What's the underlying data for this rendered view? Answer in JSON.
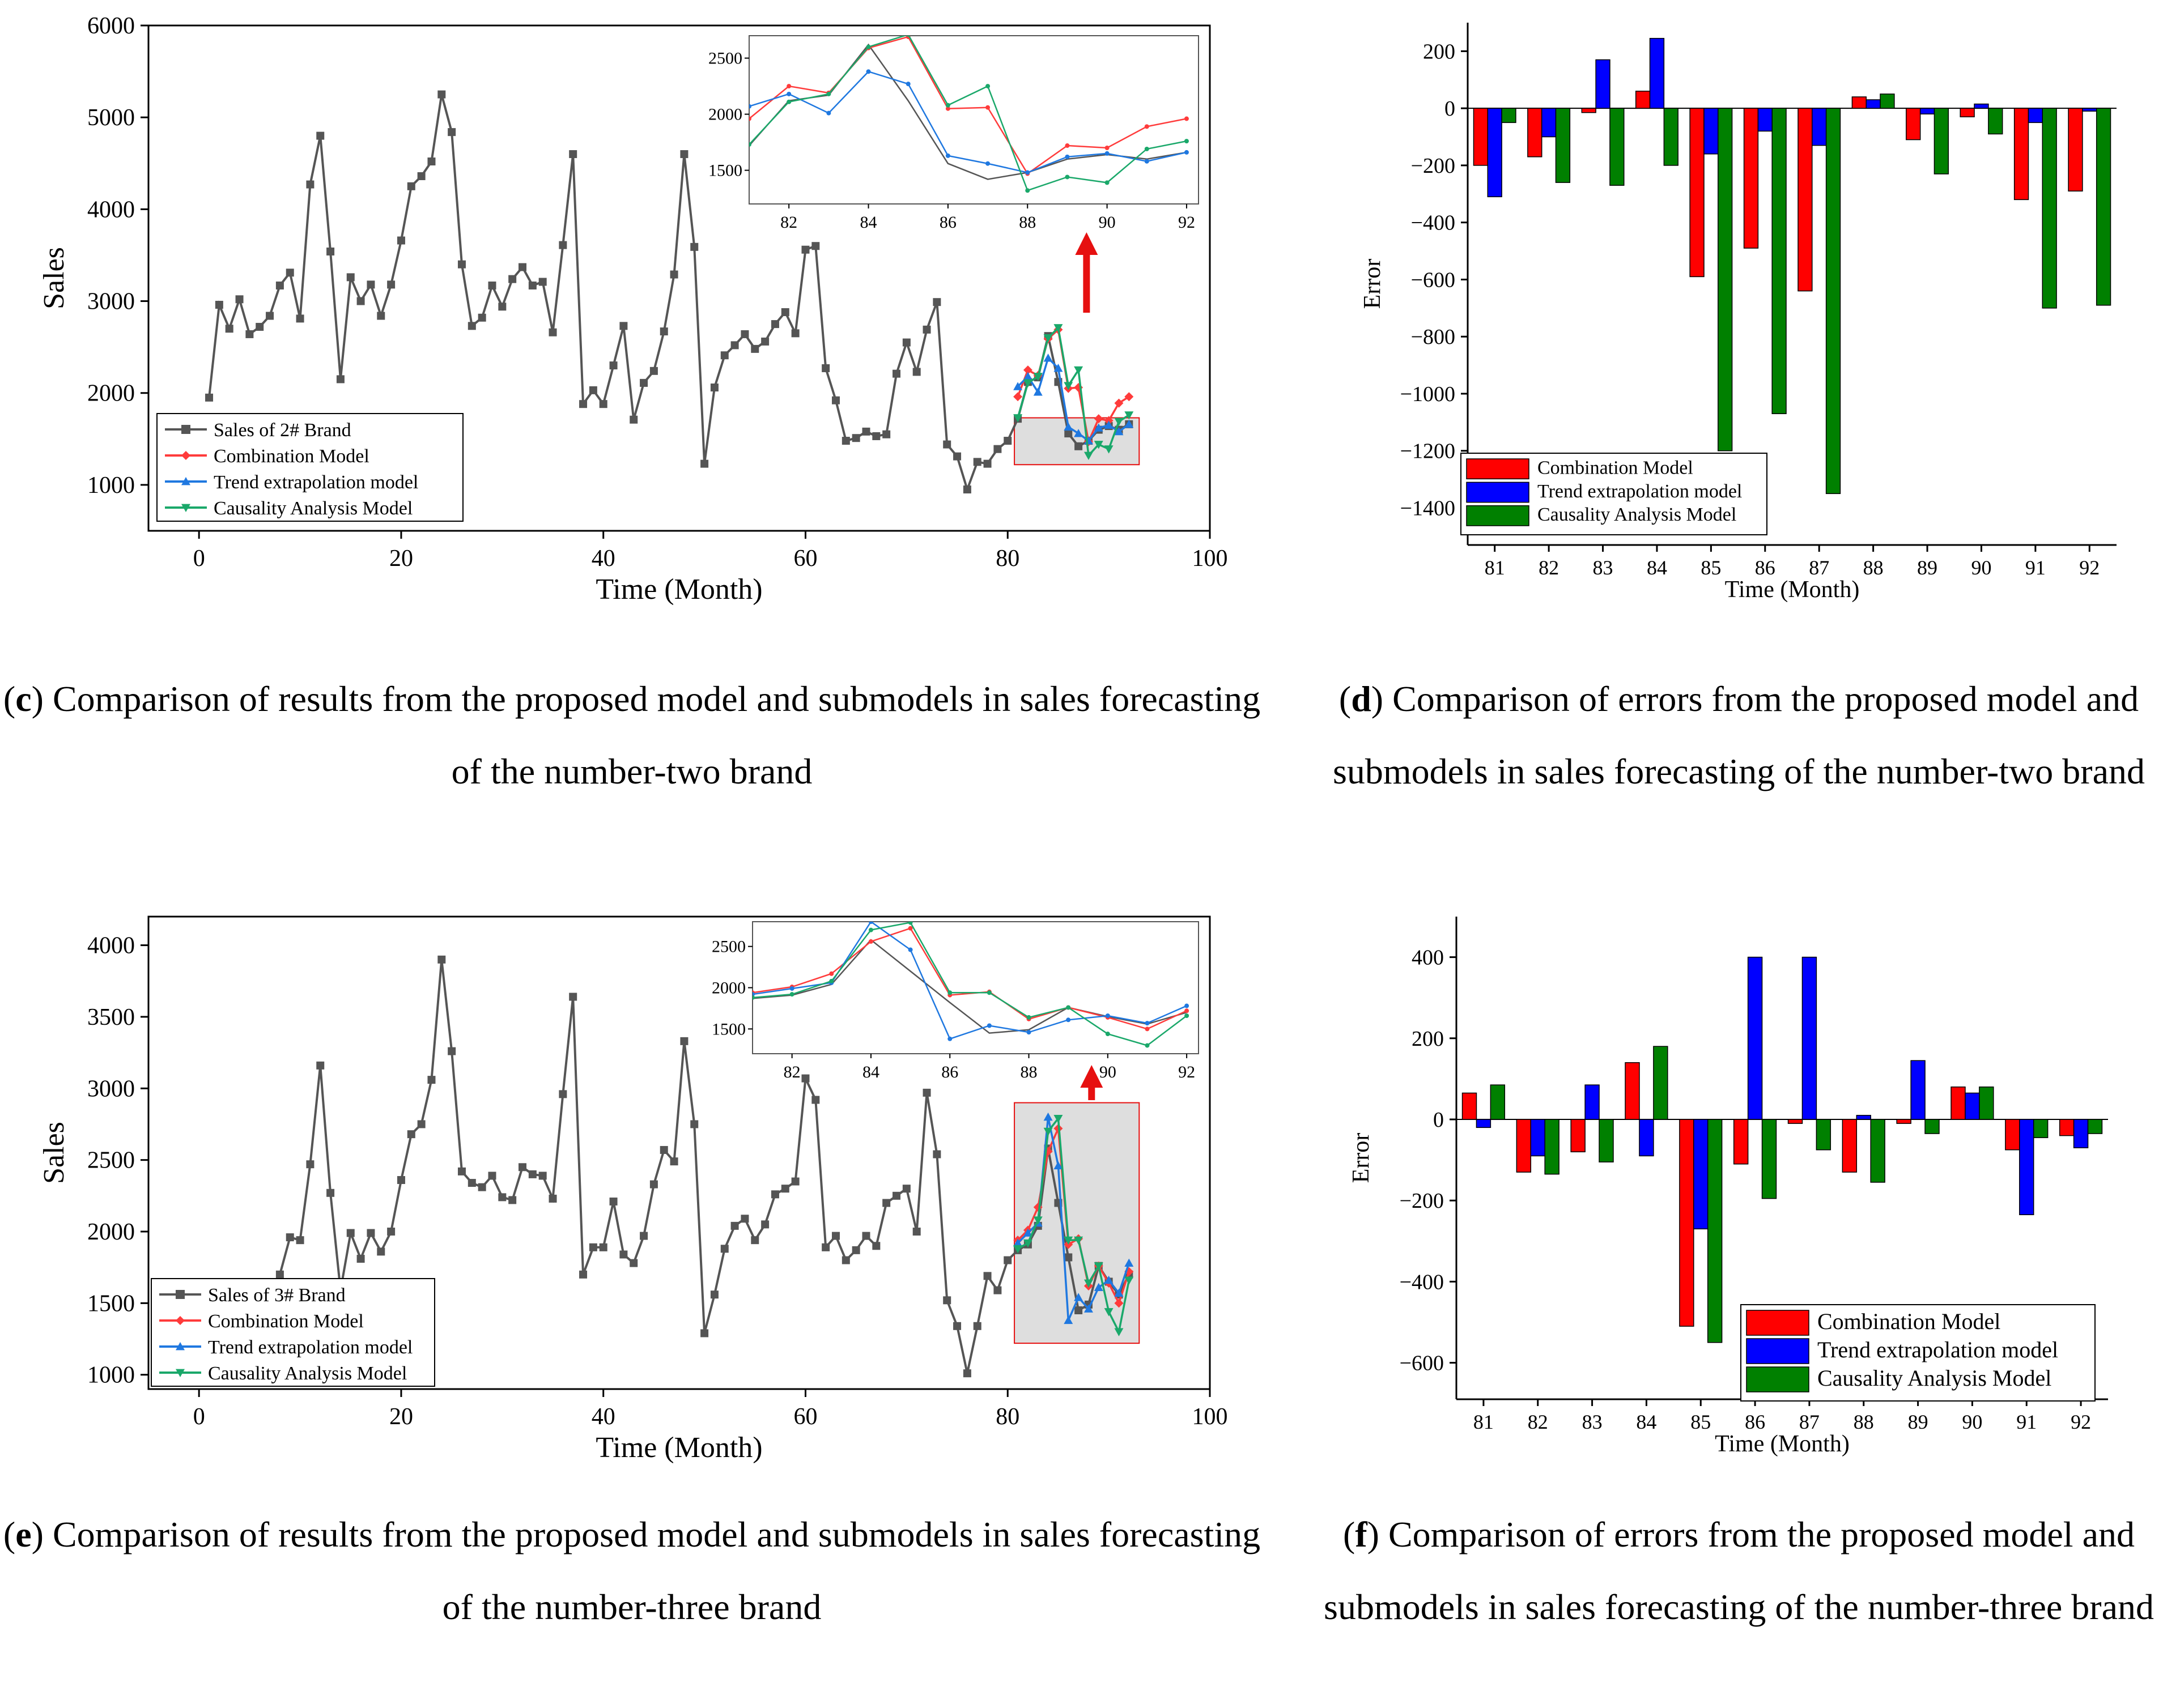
{
  "captions": {
    "c": {
      "letter": "c",
      "text": ") Comparison of results from the proposed model and submodels in sales forecasting of the number-two brand"
    },
    "d": {
      "letter": "d",
      "text": ") Comparison of errors from the proposed model and submodels in sales forecasting of the number-two brand"
    },
    "e": {
      "letter": "e",
      "text": ") Comparison of results from the proposed model and submodels in sales forecasting of the number-three brand"
    },
    "f": {
      "letter": "f",
      "text": ") Comparison of errors from the proposed model and submodels in sales forecasting of the number-three brand"
    }
  },
  "colors": {
    "sales": "#555555",
    "combination": "#ff3b3b",
    "trend": "#1f78e0",
    "causality": "#1aa86a",
    "bar_red": "#ff0000",
    "bar_blue": "#0000ff",
    "bar_green": "#008000",
    "arrow": "#e61010",
    "zoom_bg": "#dedede"
  },
  "chart_data": [
    {
      "id": "c",
      "type": "line",
      "xlabel": "Time (Month)",
      "ylabel": "Sales",
      "xlim": [
        -5,
        100
      ],
      "ylim": [
        500,
        6000
      ],
      "xticks": [
        0,
        20,
        40,
        60,
        80,
        100
      ],
      "yticks": [
        1000,
        2000,
        3000,
        4000,
        5000,
        6000
      ],
      "legend": [
        "Sales of 2# Brand",
        "Combination Model",
        "Trend extrapolation model",
        "Causality Analysis Model"
      ],
      "sales": {
        "x": [
          1,
          2,
          3,
          4,
          5,
          6,
          7,
          8,
          9,
          10,
          11,
          12,
          13,
          14,
          15,
          16,
          17,
          18,
          19,
          20,
          21,
          22,
          23,
          24,
          25,
          26,
          27,
          28,
          29,
          30,
          31,
          32,
          33,
          34,
          35,
          36,
          37,
          38,
          39,
          40,
          41,
          42,
          43,
          44,
          45,
          46,
          47,
          48,
          49,
          50,
          51,
          52,
          53,
          54,
          55,
          56,
          57,
          58,
          59,
          60,
          61,
          62,
          63,
          64,
          65,
          66,
          67,
          68,
          69,
          70,
          71,
          72,
          73,
          74,
          75,
          76,
          77,
          78,
          79,
          80,
          81,
          82,
          83,
          84,
          85,
          86,
          87,
          88,
          89,
          90,
          91,
          92
        ],
        "y": [
          1950,
          2960,
          2700,
          3020,
          2640,
          2720,
          2840,
          3170,
          3310,
          2810,
          4270,
          4800,
          3540,
          2150,
          3260,
          3000,
          3180,
          2840,
          3180,
          3660,
          4250,
          4360,
          4520,
          5250,
          4840,
          3400,
          2730,
          2820,
          3170,
          2940,
          3240,
          3370,
          3170,
          3210,
          2660,
          3610,
          4600,
          1880,
          2030,
          1880,
          2300,
          2730,
          1710,
          2110,
          2240,
          2670,
          3290,
          4600,
          3590,
          1230,
          2060,
          2410,
          2520,
          2640,
          2480,
          2560,
          2750,
          2880,
          2650,
          3560,
          3600,
          2270,
          1920,
          1480,
          1510,
          1580,
          1530,
          1550,
          2210,
          2550,
          2230,
          2690,
          2990,
          1440,
          1310,
          950,
          1250,
          1230,
          1390,
          1480,
          1720,
          2120,
          2170,
          2620,
          2120,
          1560,
          1420,
          1480,
          1600,
          1640,
          1600,
          1660
        ]
      },
      "forecast_x": [
        81,
        82,
        83,
        84,
        85,
        86,
        87,
        88,
        89,
        90,
        91,
        92
      ],
      "series": [
        {
          "name": "Combination Model",
          "values": [
            1960,
            2250,
            2190,
            2590,
            2690,
            2050,
            2060,
            1470,
            1720,
            1700,
            1890,
            1960
          ]
        },
        {
          "name": "Trend extrapolation model",
          "values": [
            2070,
            2180,
            2010,
            2380,
            2270,
            1630,
            1560,
            1480,
            1620,
            1650,
            1580,
            1660
          ]
        },
        {
          "name": "Causality Analysis Model",
          "values": [
            1730,
            2110,
            2180,
            2600,
            2710,
            2080,
            2250,
            1320,
            1440,
            1390,
            1690,
            1760
          ]
        }
      ],
      "inset": {
        "xlim": [
          81,
          92.3
        ],
        "ylim": [
          1200,
          2700
        ],
        "xticks": [
          82,
          84,
          86,
          88,
          90,
          92
        ],
        "yticks": [
          1500,
          2000,
          2500
        ]
      }
    },
    {
      "id": "d",
      "type": "bar",
      "xlabel": "Time (Month)",
      "ylabel": "Error",
      "ylim": [
        -1530,
        300
      ],
      "yticks": [
        200,
        0,
        -200,
        -400,
        -600,
        -800,
        -1000,
        -1200,
        -1400
      ],
      "categories": [
        "81",
        "82",
        "83",
        "84",
        "85",
        "86",
        "87",
        "88",
        "89",
        "90",
        "91",
        "92"
      ],
      "series": [
        {
          "name": "Combination Model",
          "values": [
            -200,
            -170,
            -15,
            60,
            -590,
            -490,
            -640,
            40,
            -110,
            -30,
            -320,
            -290
          ]
        },
        {
          "name": "Trend extrapolation model",
          "values": [
            -310,
            -100,
            170,
            245,
            -160,
            -80,
            -130,
            30,
            -20,
            15,
            -50,
            -10
          ]
        },
        {
          "name": "Causality Analysis Model",
          "values": [
            -50,
            -260,
            -270,
            -200,
            -1200,
            -1070,
            -1350,
            50,
            -230,
            -90,
            -700,
            -690
          ]
        }
      ]
    },
    {
      "id": "e",
      "type": "line",
      "xlabel": "Time (Month)",
      "ylabel": "Sales",
      "xlim": [
        -5,
        100
      ],
      "ylim": [
        900,
        4200
      ],
      "xticks": [
        0,
        20,
        40,
        60,
        80,
        100
      ],
      "yticks": [
        1000,
        1500,
        2000,
        2500,
        3000,
        3500,
        4000
      ],
      "legend": [
        "Sales of 3# Brand",
        "Combination Model",
        "Trend extrapolation model",
        "Causality Analysis Model"
      ],
      "sales": {
        "x": [
          8,
          9,
          10,
          11,
          12,
          13,
          14,
          15,
          16,
          17,
          18,
          19,
          20,
          21,
          22,
          23,
          24,
          25,
          26,
          27,
          28,
          29,
          30,
          31,
          32,
          33,
          34,
          35,
          36,
          37,
          38,
          39,
          40,
          41,
          42,
          43,
          44,
          45,
          46,
          47,
          48,
          49,
          50,
          51,
          52,
          53,
          54,
          55,
          56,
          57,
          58,
          59,
          60,
          61,
          62,
          63,
          64,
          65,
          66,
          67,
          68,
          69,
          70,
          71,
          72,
          73,
          74,
          75,
          76,
          77,
          78,
          79,
          80,
          81,
          82,
          83,
          84,
          85,
          86,
          87,
          88,
          89,
          90,
          91,
          92
        ],
        "y": [
          1700,
          1960,
          1940,
          2470,
          3160,
          2270,
          1590,
          1990,
          1810,
          1990,
          1860,
          2000,
          2360,
          2680,
          2750,
          3060,
          3900,
          3260,
          2420,
          2340,
          2310,
          2390,
          2240,
          2220,
          2450,
          2400,
          2390,
          2230,
          2960,
          3640,
          1700,
          1890,
          1890,
          2210,
          1840,
          1780,
          1970,
          2330,
          2570,
          2490,
          3330,
          2750,
          1290,
          1560,
          1880,
          2040,
          2090,
          1940,
          2050,
          2260,
          2300,
          2350,
          3070,
          2920,
          1890,
          1970,
          1800,
          1870,
          1970,
          1900,
          2200,
          2250,
          2300,
          2000,
          2970,
          2540,
          1520,
          1340,
          1010,
          1340,
          1690,
          1590,
          1800,
          1870,
          1910,
          2040,
          2580,
          2200,
          1820,
          1450,
          1490,
          1760,
          1650,
          1560,
          1700
        ]
      },
      "forecast_x": [
        81,
        82,
        83,
        84,
        85,
        86,
        87,
        88,
        89,
        90,
        91,
        92
      ],
      "series": [
        {
          "name": "Combination Model",
          "values": [
            1940,
            2010,
            2170,
            2560,
            2720,
            1910,
            1950,
            1620,
            1760,
            1640,
            1500,
            1720
          ]
        },
        {
          "name": "Trend extrapolation model",
          "values": [
            1920,
            1990,
            2060,
            2800,
            2460,
            1380,
            1540,
            1460,
            1610,
            1660,
            1570,
            1780
          ]
        },
        {
          "name": "Causality Analysis Model",
          "values": [
            1880,
            1920,
            2080,
            2700,
            2790,
            1940,
            1940,
            1640,
            1760,
            1440,
            1300,
            1660
          ]
        }
      ],
      "inset": {
        "xlim": [
          81,
          92.3
        ],
        "ylim": [
          1200,
          2800
        ],
        "xticks": [
          82,
          84,
          86,
          88,
          90,
          92
        ],
        "yticks": [
          1500,
          2000,
          2500
        ]
      }
    },
    {
      "id": "f",
      "type": "bar",
      "xlabel": "Time (Month)",
      "ylabel": "Error",
      "ylim": [
        -690,
        500
      ],
      "yticks": [
        400,
        200,
        0,
        -200,
        -400,
        -600
      ],
      "categories": [
        "81",
        "82",
        "83",
        "84",
        "85",
        "86",
        "87",
        "88",
        "89",
        "90",
        "91",
        "92"
      ],
      "series": [
        {
          "name": "Combination Model",
          "values": [
            65,
            -130,
            -80,
            140,
            -510,
            -110,
            -10,
            -130,
            -10,
            80,
            -75,
            -40
          ]
        },
        {
          "name": "Trend extrapolation model",
          "values": [
            -20,
            -90,
            85,
            -90,
            -270,
            400,
            400,
            10,
            145,
            65,
            -235,
            -70
          ]
        },
        {
          "name": "Causality Analysis Model",
          "values": [
            85,
            -135,
            -105,
            180,
            -550,
            -195,
            -75,
            -155,
            -35,
            80,
            -45,
            -35
          ]
        }
      ]
    }
  ]
}
